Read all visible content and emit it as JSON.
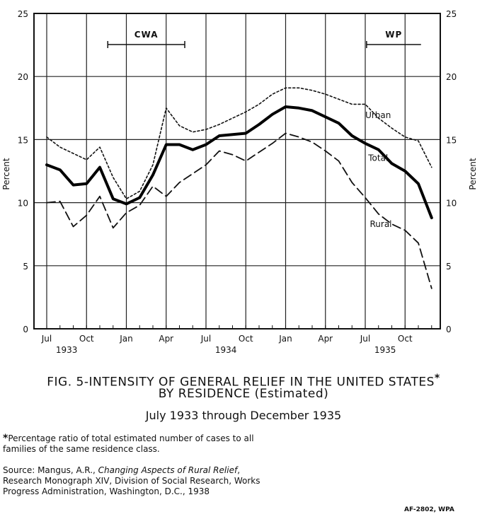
{
  "chart_data": {
    "type": "line",
    "title": "FIG. 5-INTENSITY OF GENERAL RELIEF IN THE UNITED STATES",
    "title_marker": "*",
    "subtitle": "BY RESIDENCE (Estimated)",
    "date_range": "July 1933 through December 1935",
    "ylabel_left": "Percent",
    "ylabel_right": "Percent",
    "ylim": [
      0,
      25
    ],
    "yticks": [
      0,
      5,
      10,
      15,
      20,
      25
    ],
    "grid": true,
    "x": [
      "Jul 1933",
      "Aug 1933",
      "Sep 1933",
      "Oct 1933",
      "Nov 1933",
      "Dec 1933",
      "Jan 1934",
      "Feb 1934",
      "Mar 1934",
      "Apr 1934",
      "May 1934",
      "Jun 1934",
      "Jul 1934",
      "Aug 1934",
      "Sep 1934",
      "Oct 1934",
      "Nov 1934",
      "Dec 1934",
      "Jan 1935",
      "Feb 1935",
      "Mar 1935",
      "Apr 1935",
      "May 1935",
      "Jun 1935",
      "Jul 1935",
      "Aug 1935",
      "Sep 1935",
      "Oct 1935",
      "Nov 1935",
      "Dec 1935"
    ],
    "xticks": [
      {
        "month": "Jul",
        "year": "1933",
        "index": 0
      },
      {
        "month": "Oct",
        "year": "",
        "index": 3
      },
      {
        "month": "Jan",
        "year": "",
        "index": 6
      },
      {
        "month": "Apr",
        "year": "",
        "index": 9
      },
      {
        "month": "Jul",
        "year": "1934",
        "index": 12
      },
      {
        "month": "Oct",
        "year": "",
        "index": 15
      },
      {
        "month": "Jan",
        "year": "",
        "index": 18
      },
      {
        "month": "Apr",
        "year": "",
        "index": 21
      },
      {
        "month": "Jul",
        "year": "1935",
        "index": 24
      },
      {
        "month": "Oct",
        "year": "",
        "index": 27
      }
    ],
    "series": [
      {
        "name": "Urban",
        "style": "dotted",
        "values": [
          15.2,
          14.4,
          13.9,
          13.4,
          14.4,
          12.0,
          10.3,
          10.9,
          13.0,
          17.5,
          16.1,
          15.6,
          15.8,
          16.2,
          16.7,
          17.2,
          17.8,
          18.6,
          19.1,
          19.1,
          18.9,
          18.6,
          18.2,
          17.8,
          17.8,
          16.7,
          15.9,
          15.2,
          14.9,
          12.8
        ]
      },
      {
        "name": "Total",
        "style": "solid-thick",
        "values": [
          13.0,
          12.6,
          11.4,
          11.5,
          12.8,
          10.3,
          9.9,
          10.4,
          12.2,
          14.6,
          14.6,
          14.2,
          14.6,
          15.3,
          15.4,
          15.5,
          16.2,
          17.0,
          17.6,
          17.5,
          17.3,
          16.8,
          16.3,
          15.3,
          14.7,
          14.2,
          13.1,
          12.5,
          11.5,
          8.8
        ]
      },
      {
        "name": "Rural",
        "style": "dashed",
        "values": [
          10.0,
          10.1,
          8.1,
          9.0,
          10.5,
          8.0,
          9.2,
          9.8,
          11.3,
          10.5,
          11.6,
          12.3,
          13.0,
          14.1,
          13.8,
          13.3,
          14.0,
          14.7,
          15.5,
          15.2,
          14.8,
          14.1,
          13.3,
          11.6,
          10.4,
          9.1,
          8.3,
          7.8,
          6.8,
          3.2
        ]
      }
    ],
    "brackets": [
      {
        "label": "CWA",
        "from": 4.6,
        "to": 10.4
      },
      {
        "label": "WP",
        "from": 24.1,
        "to": 28.2
      }
    ]
  },
  "footnote": {
    "marker": "*",
    "text": "Percentage ratio of total estimated number of cases to all families of the same residence class."
  },
  "source": {
    "prefix": "Source: Mangus, A.R., ",
    "title": "Changing Aspects of Rural Relief",
    "rest": ", Research Monograph XIV, Division of Social Research, Works Progress Administration, Washington, D.C., 1938"
  },
  "figure_code": "AF-2802, WPA"
}
